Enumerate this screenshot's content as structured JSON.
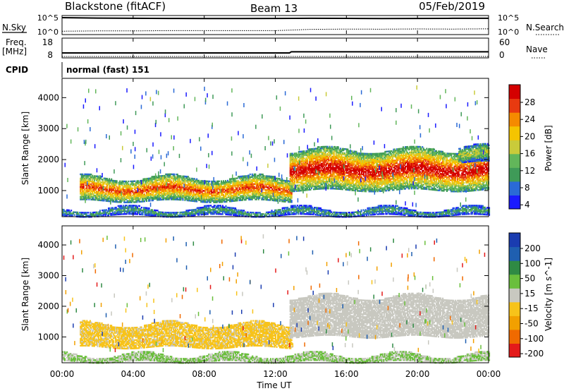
{
  "header": {
    "station": "Blackstone (fitACF)",
    "beam": "Beam 13",
    "date": "05/Feb/2019"
  },
  "noise_panel": {
    "left_label": "N.Sky",
    "right_label": "N.Search",
    "left_ticks": [
      "10^5",
      "10^0"
    ],
    "right_ticks": [
      "10^5",
      "10^0"
    ]
  },
  "freq_panel": {
    "left_label_1": "Freq.",
    "left_label_2": "[MHz]",
    "right_label": "Nave",
    "left_ticks": [
      "18",
      "8"
    ],
    "right_ticks": [
      "60",
      "0"
    ]
  },
  "cpid_panel": {
    "label": "CPID",
    "text": "normal (fast) 151"
  },
  "power_panel": {
    "ylabel": "Slant Range [km]",
    "colorbar_label": "Power [dB]",
    "colorbar_ticks": [
      "28",
      "24",
      "20",
      "16",
      "12",
      "8",
      "4"
    ]
  },
  "velocity_panel": {
    "ylabel": "Slant Range [km]",
    "colorbar_label": "Velocity [m s^-1]",
    "colorbar_ticks": [
      "200",
      "100",
      "50",
      "15",
      "-15",
      "-50",
      "-100",
      "-200"
    ]
  },
  "xaxis": {
    "label": "Time UT",
    "ticks": [
      "00:00",
      "04:00",
      "08:00",
      "12:00",
      "16:00",
      "20:00",
      "00:00"
    ]
  },
  "chart_data": [
    {
      "type": "line",
      "title": "N.Sky / N.Search",
      "xlabel": "",
      "ylabel": "N.Sky",
      "x": [
        0,
        2,
        4,
        6,
        8,
        10,
        12,
        14,
        16,
        18,
        20,
        22,
        24
      ],
      "series": [
        {
          "name": "N.Sky",
          "values": [
            60000,
            45000,
            38000,
            35000,
            33000,
            32000,
            34000,
            40000,
            36000,
            33000,
            34000,
            38000,
            39000
          ]
        },
        {
          "name": "N.Search",
          "values": [
            4,
            5,
            5,
            6,
            6,
            6,
            6,
            15,
            18,
            17,
            20,
            18,
            22
          ]
        }
      ]
    },
    {
      "type": "line",
      "title": "Freq. / Nave",
      "xlabel": "",
      "ylabel": "Freq. [MHz]",
      "x": [
        0,
        4,
        8,
        12.8,
        12.9,
        16,
        20,
        24
      ],
      "series": [
        {
          "name": "Freq.",
          "values": [
            10.2,
            10.2,
            10.2,
            10.2,
            10.9,
            10.9,
            10.9,
            10.9
          ]
        },
        {
          "name": "Nave",
          "values": [
            0,
            0,
            0,
            0,
            0,
            0,
            0,
            0
          ]
        }
      ]
    },
    {
      "type": "heatmap",
      "title": "Power [dB]",
      "xlabel": "Time UT",
      "ylabel": "Slant Range [km]",
      "xlim": [
        0,
        24
      ],
      "ylim": [
        180,
        4600
      ],
      "zlim": [
        0,
        30
      ],
      "regions": [
        {
          "t0": 1.0,
          "t1": 12.9,
          "r0": 650,
          "r1": 1400,
          "peak": 26
        },
        {
          "t0": 12.8,
          "t1": 24.0,
          "r0": 1000,
          "r1": 2300,
          "peak": 30
        },
        {
          "t0": 22.3,
          "t1": 24.0,
          "r0": 1900,
          "r1": 2400,
          "peak": 16
        },
        {
          "t0": 0.0,
          "t1": 24.0,
          "r0": 180,
          "r1": 400,
          "peak": 10
        }
      ]
    },
    {
      "type": "heatmap",
      "title": "Velocity [m s^-1]",
      "xlabel": "Time UT",
      "ylabel": "Slant Range [km]",
      "xlim": [
        0,
        24
      ],
      "ylim": [
        180,
        4600
      ],
      "zlim": [
        -250,
        250
      ],
      "regions": [
        {
          "t0": 1.0,
          "t1": 12.9,
          "r0": 650,
          "r1": 1400,
          "value": -40
        },
        {
          "t0": 12.8,
          "t1": 24.0,
          "r0": 1000,
          "r1": 2300,
          "value": 0
        },
        {
          "t0": 0.0,
          "t1": 24.0,
          "r0": 180,
          "r1": 400,
          "value": 30
        }
      ]
    }
  ]
}
